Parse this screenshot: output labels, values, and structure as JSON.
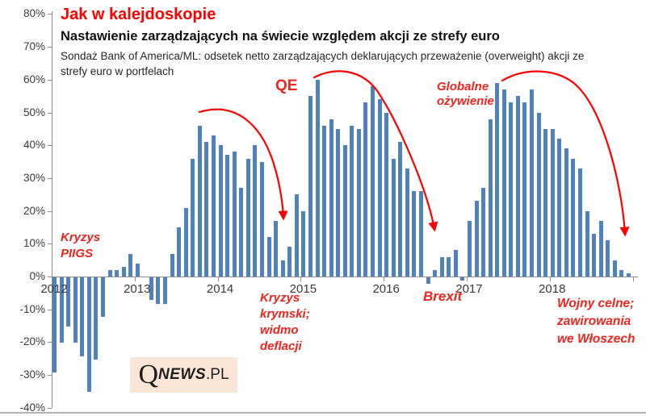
{
  "header": {
    "title": "Jak w kalejdoskopie",
    "subtitle": "Nastawienie zarządzających na świecie względem akcji ze strefy euro",
    "description": "Sondaż Bank of America/ML: odsetek netto zarządzających deklarujących przeważenie (overweight) akcji ze\nstrefy euro w portfelach"
  },
  "chart_data": {
    "type": "bar",
    "title": "Jak w kalejdoskopie",
    "subtitle": "Nastawienie zarządzających na świecie względem akcji ze strefy euro",
    "source_note": "Sondaż Bank of America/ML: odsetek netto zarządzających deklarujących przeważenie (overweight) akcji ze strefy euro w portfelach",
    "unit": "%",
    "x_start": "2012-01",
    "x_step": "month",
    "x_year_labels": [
      "2012",
      "2013",
      "2014",
      "2015",
      "2016",
      "2017",
      "2018"
    ],
    "values": [
      -29,
      -20,
      -15,
      -20,
      -24,
      -35,
      -25,
      -12,
      2,
      2,
      3,
      7,
      4,
      0,
      -7,
      -8,
      -8,
      7,
      15,
      21,
      36,
      46,
      41,
      43,
      40,
      37,
      38,
      27,
      36,
      40,
      35,
      12,
      17,
      5,
      9,
      25,
      20,
      55,
      60,
      46,
      48,
      45,
      40,
      46,
      45,
      53,
      58,
      54,
      50,
      36,
      41,
      33,
      26,
      26,
      -2,
      2,
      6,
      6,
      8,
      -1,
      17,
      23,
      27,
      48,
      59,
      57,
      53,
      55,
      53,
      57,
      50,
      45,
      45,
      42,
      39,
      36,
      33,
      20,
      13,
      17,
      11,
      5,
      2,
      1
    ],
    "ylim": [
      -40,
      80
    ],
    "ytick_step": 10,
    "ytick_labels": [
      "80%",
      "70%",
      "60%",
      "50%",
      "40%",
      "30%",
      "20%",
      "10%",
      "0%",
      "-10%",
      "-20%",
      "-30%",
      "-40%"
    ],
    "grid": false,
    "legend": "none",
    "bar_color": "#4F81BD",
    "arrow_color": "#ff0000",
    "annotations": {
      "piigs": {
        "text": "Kryzys\nPIIGS"
      },
      "qe": {
        "text": "QE"
      },
      "krymski": {
        "text": "Kryzys\nkrymski;\nwidmo\ndeflacji"
      },
      "brexit": {
        "text": "Brexit"
      },
      "ozywienie": {
        "text": "Globalne\nożywienie"
      },
      "wojny": {
        "text": "Wojny celne;\nzawirowania\nwe Włoszech"
      }
    }
  },
  "logo": {
    "q": "Q",
    "news": "NEWS",
    "pl": ".PL"
  }
}
